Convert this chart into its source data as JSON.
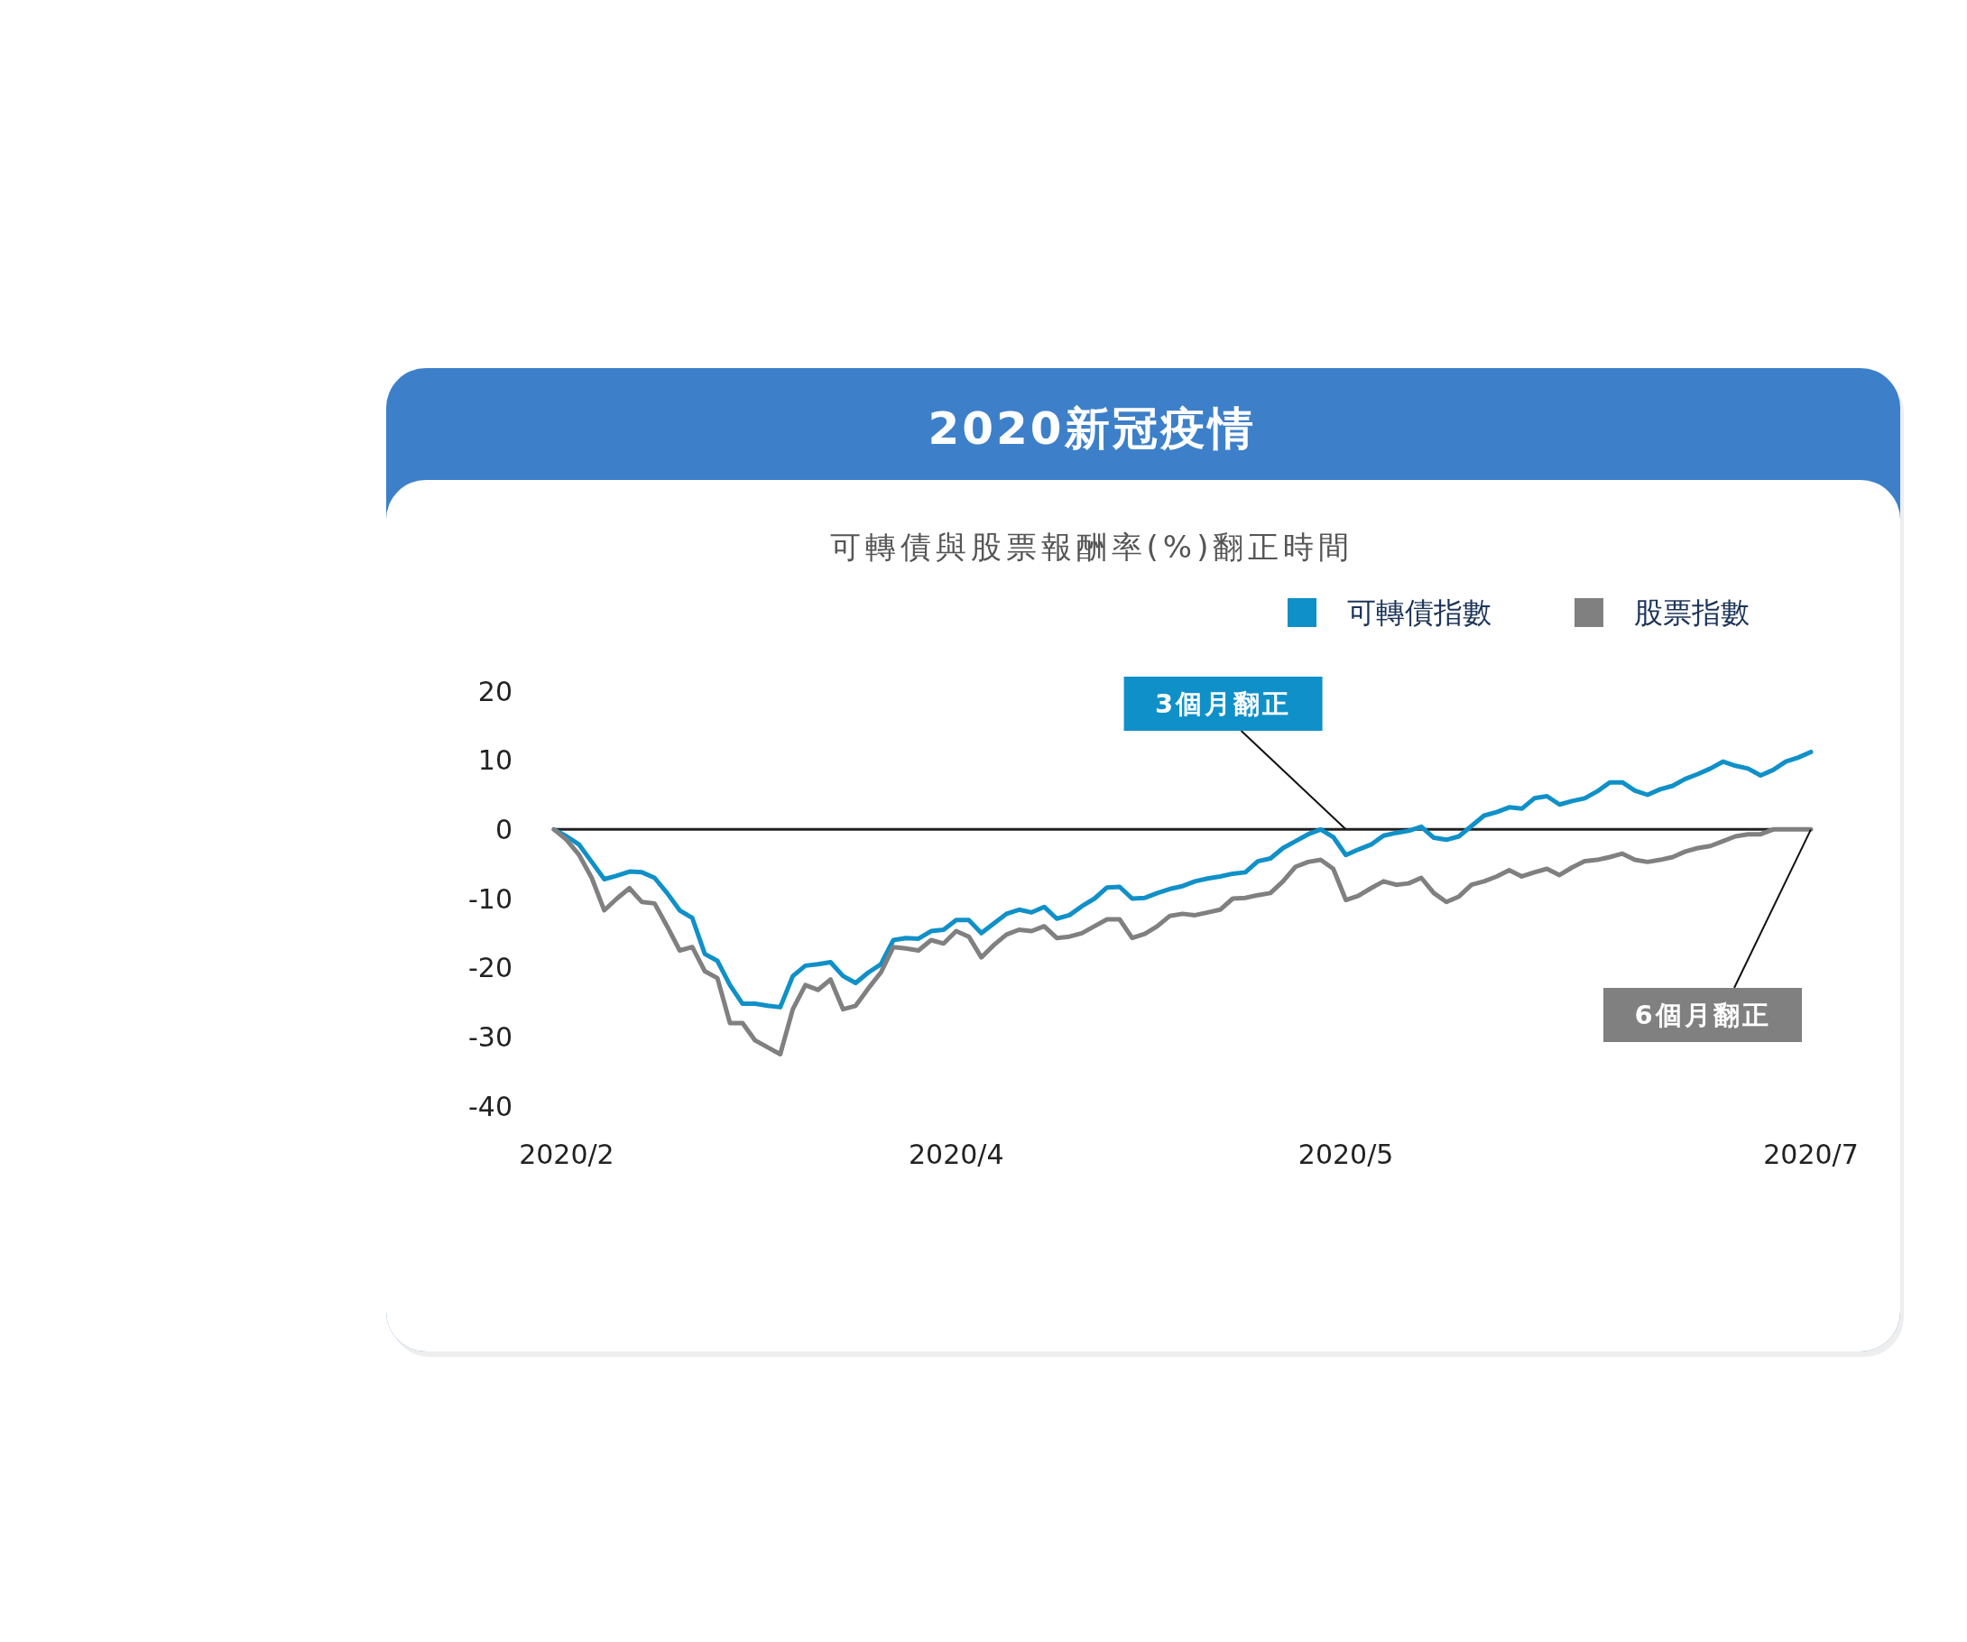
{
  "chart_data": {
    "type": "line",
    "title": "2020新冠疫情",
    "subtitle": "可轉債與股票報酬率(%)翻正時間",
    "categories": [
      null,
      "2020/2",
      null,
      null,
      null,
      null,
      null,
      null,
      null,
      null,
      null,
      null,
      null,
      null,
      null,
      null,
      null,
      null,
      null,
      null,
      null,
      null,
      null,
      null,
      null,
      null,
      null,
      null,
      null,
      null,
      null,
      null,
      "2020/4",
      null,
      null,
      null,
      null,
      null,
      null,
      null,
      null,
      null,
      null,
      null,
      null,
      null,
      null,
      null,
      null,
      null,
      null,
      null,
      null,
      null,
      null,
      null,
      null,
      null,
      null,
      null,
      null,
      null,
      null,
      "2020/5",
      null,
      null,
      null,
      null,
      null,
      null,
      null,
      null,
      null,
      null,
      null,
      null,
      null,
      null,
      null,
      null,
      null,
      null,
      null,
      null,
      null,
      null,
      null,
      null,
      null,
      null,
      null,
      null,
      null,
      null,
      null,
      null,
      null,
      null,
      null,
      null,
      "2020/7"
    ],
    "series": [
      {
        "name": "可轉債指數",
        "color": "#1090c8",
        "values": [
          0,
          -1,
          -2.2,
          -4.7,
          -7.2,
          -6.7,
          -6.1,
          -6.2,
          -7,
          -9.2,
          -11.7,
          -12.8,
          -18,
          -19,
          -22.5,
          -25.2,
          -25.2,
          -25.5,
          -25.7,
          -21.2,
          -19.7,
          -19.5,
          -19.2,
          -21.2,
          -22.2,
          -20.7,
          -19.5,
          -16,
          -15.7,
          -15.8,
          -14.7,
          -14.5,
          -13.1,
          -13.1,
          -15,
          -13.6,
          -12.2,
          -11.6,
          -12,
          -11.2,
          -12.9,
          -12.4,
          -11.1,
          -10,
          -8.4,
          -8.3,
          -10,
          -9.9,
          -9.2,
          -8.6,
          -8.2,
          -7.5,
          -7.1,
          -6.8,
          -6.4,
          -6.2,
          -4.6,
          -4.2,
          -2.7,
          -1.7,
          -0.7,
          0,
          -1.1,
          -3.7,
          -2.9,
          -2.2,
          -0.9,
          -0.5,
          -0.2,
          0.4,
          -1.2,
          -1.5,
          -1,
          0.5,
          2,
          2.5,
          3.2,
          3,
          4.5,
          4.8,
          3.6,
          4.1,
          4.5,
          5.5,
          6.8,
          6.8,
          5.6,
          5,
          5.8,
          6.3,
          7.3,
          8,
          8.8,
          9.8,
          9.2,
          8.8,
          7.8,
          8.6,
          9.8,
          10.4,
          11.2
        ]
      },
      {
        "name": "股票指數",
        "color": "#808080",
        "values": [
          0,
          -1.5,
          -3.7,
          -7,
          -11.7,
          -10,
          -8.5,
          -10.5,
          -10.7,
          -14,
          -17.5,
          -17,
          -20.5,
          -21.5,
          -28,
          -28,
          -30.5,
          -31.5,
          -32.5,
          -26,
          -22.5,
          -23.2,
          -21.7,
          -26,
          -25.5,
          -23,
          -20.7,
          -17,
          -17.2,
          -17.5,
          -16,
          -16.5,
          -14.7,
          -15.5,
          -18.5,
          -16.7,
          -15.2,
          -14.5,
          -14.7,
          -14,
          -15.7,
          -15.5,
          -15,
          -14,
          -13,
          -13,
          -15.7,
          -15.1,
          -14,
          -12.5,
          -12.2,
          -12.4,
          -12,
          -11.6,
          -10,
          -9.9,
          -9.5,
          -9.2,
          -7.5,
          -5.4,
          -4.7,
          -4.4,
          -5.7,
          -10.2,
          -9.6,
          -8.5,
          -7.5,
          -8,
          -7.8,
          -7,
          -9.2,
          -10.5,
          -9.7,
          -8,
          -7.5,
          -6.8,
          -5.9,
          -6.8,
          -6.2,
          -5.7,
          -6.6,
          -5.5,
          -4.6,
          -4.4,
          -4,
          -3.5,
          -4.4,
          -4.7,
          -4.4,
          -4,
          -3.2,
          -2.7,
          -2.4,
          -1.7,
          -1,
          -0.7,
          -0.7,
          0,
          0,
          0,
          0
        ]
      }
    ],
    "ylim": [
      -40,
      20
    ],
    "yticks": [
      20,
      10,
      0,
      -10,
      -20,
      -30,
      -40
    ],
    "ref_lines": [
      {
        "axis": "y",
        "value": 0,
        "color": "#222222"
      }
    ],
    "annotations": [
      {
        "text": "3個月翻正",
        "x": "2020/5",
        "y": 0
      },
      {
        "text": "6個月翻正",
        "x": "2020/7",
        "y": 0
      }
    ],
    "legend": "top right",
    "grid": false
  }
}
